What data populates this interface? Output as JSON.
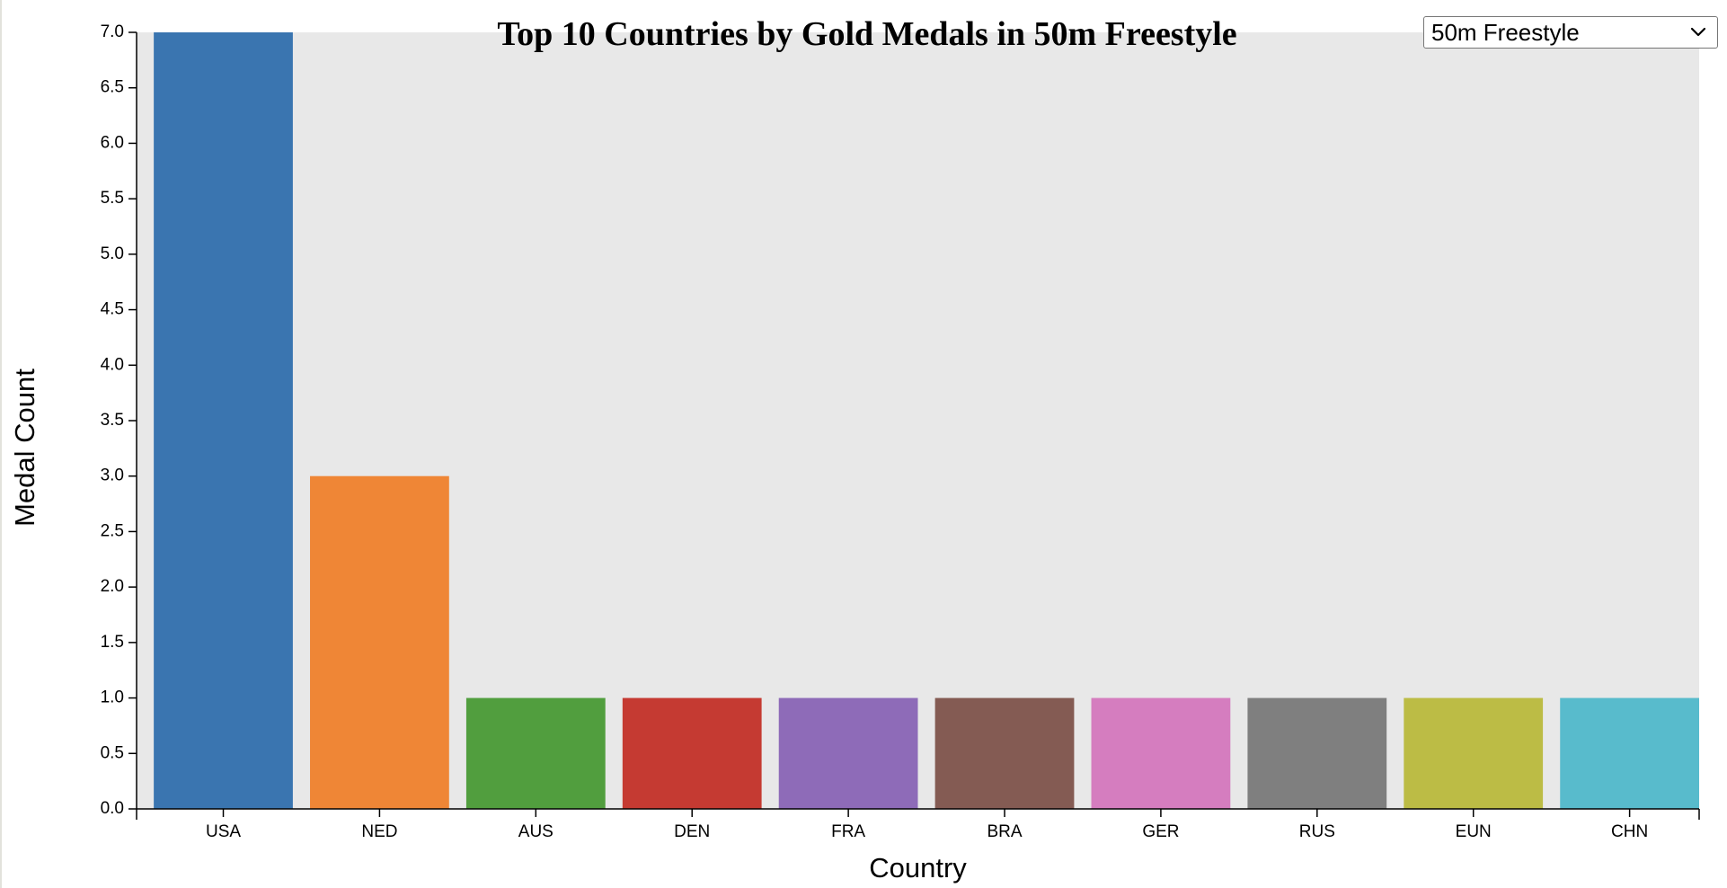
{
  "header": {
    "title": "Top 10 Countries by Gold Medals in 50m Freestyle"
  },
  "event_select": {
    "selected": "50m Freestyle"
  },
  "chart_data": {
    "type": "bar",
    "title": "Top 10 Countries by Gold Medals in 50m Freestyle",
    "xlabel": "Country",
    "ylabel": "Medal Count",
    "categories": [
      "USA",
      "NED",
      "AUS",
      "DEN",
      "FRA",
      "BRA",
      "GER",
      "RUS",
      "EUN",
      "CHN"
    ],
    "values": [
      7,
      3,
      1,
      1,
      1,
      1,
      1,
      1,
      1,
      1
    ],
    "colors": [
      "#3a75b0",
      "#ef8636",
      "#519e3e",
      "#c53a32",
      "#8e6bb8",
      "#845b53",
      "#d57dbf",
      "#7f7f7f",
      "#bcbc45",
      "#58bbcc"
    ],
    "ylim": [
      0,
      7
    ],
    "yticks": [
      "0.0",
      "0.5",
      "1.0",
      "1.5",
      "2.0",
      "2.5",
      "3.0",
      "3.5",
      "4.0",
      "4.5",
      "5.0",
      "5.5",
      "6.0",
      "6.5",
      "7.0"
    ],
    "plot_background": "#e8e8e8",
    "grid": false,
    "legend": "none"
  }
}
